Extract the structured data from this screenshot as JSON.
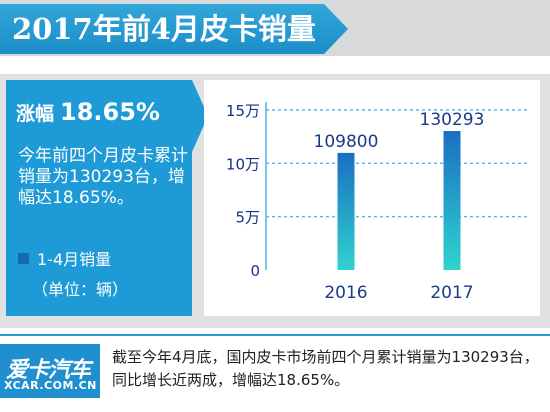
{
  "title": "2017年前4月皮卡销量",
  "summary": {
    "growth_label": "涨幅",
    "growth_value": "18.65%",
    "description": "今年前四个月皮卡累计销量为130293台，增幅达18.65%。",
    "legend_label": "1-4月销量",
    "unit": "（单位：辆）"
  },
  "chart_data": {
    "type": "bar",
    "categories": [
      "2016",
      "2017"
    ],
    "series": [
      {
        "name": "1-4月销量",
        "values": [
          109800,
          130293
        ]
      }
    ],
    "value_labels": [
      "109800",
      "130293"
    ],
    "ylim": [
      0,
      150000
    ],
    "yticks": [
      0,
      50000,
      100000,
      150000
    ],
    "ytick_labels": [
      "0",
      "5万",
      "10万",
      "15万"
    ],
    "grid": true,
    "colors": {
      "bar_top": "#1a6fc0",
      "bar_bottom": "#2fd3cf",
      "grid": "#56b7e6",
      "tick_text": "#1a2f8a",
      "value_text": "#1a3a8c"
    }
  },
  "footer": {
    "logo_text": "爱卡汽车",
    "logo_sub": "XCAR.COM.CN",
    "text": "截至今年4月底，国内皮卡市场前四个月累计销量为130293台，同比增长近两成，增幅达18.65%。"
  }
}
